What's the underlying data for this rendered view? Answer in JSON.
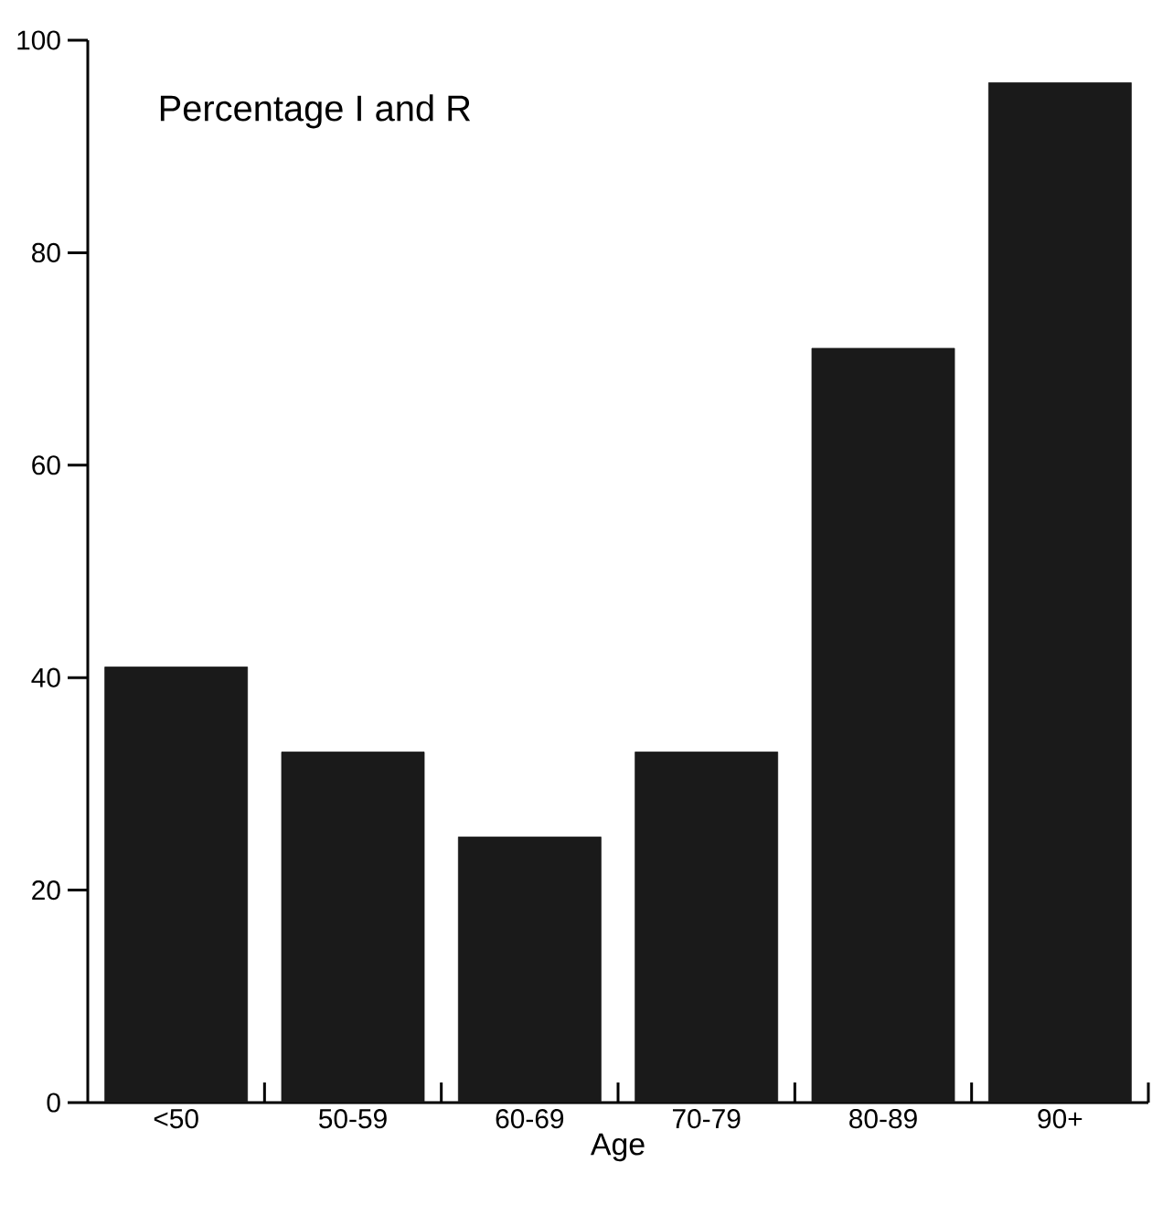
{
  "chart_data": {
    "type": "bar",
    "title": "Percentage I and R",
    "xlabel": "Age",
    "categories": [
      "<50",
      "50-59",
      "60-69",
      "70-79",
      "80-89",
      "90+"
    ],
    "values": [
      41,
      33,
      25,
      33,
      71,
      96
    ],
    "color": "#1a1a1a",
    "ylim": [
      0,
      100
    ],
    "yticks": [
      0,
      20,
      40,
      60,
      80,
      100
    ],
    "grid": false
  }
}
